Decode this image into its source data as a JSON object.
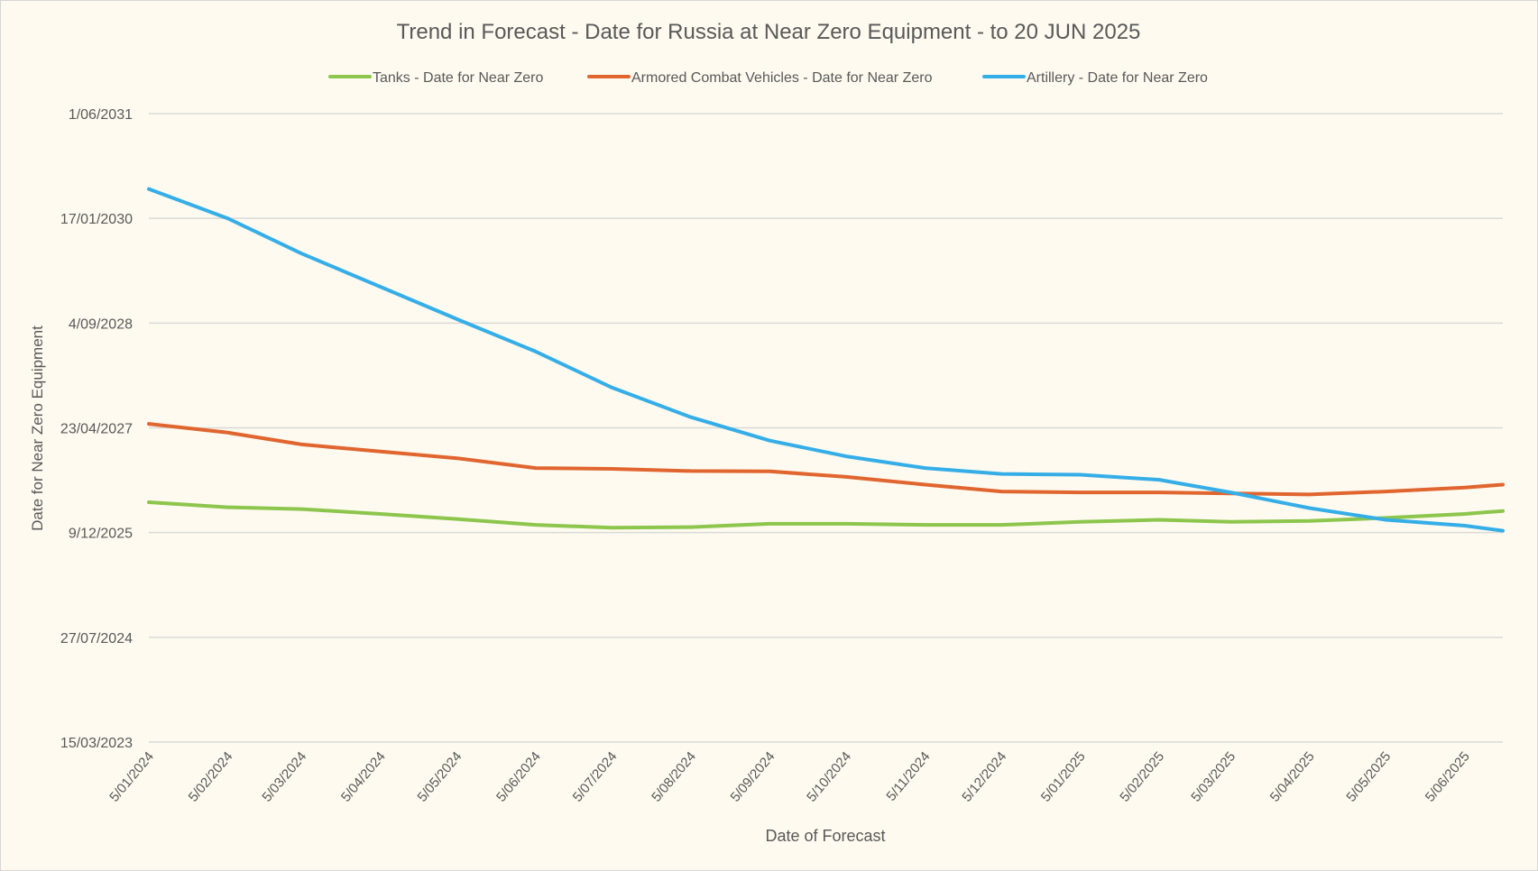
{
  "chart_data": {
    "type": "line",
    "title": "Trend in Forecast - Date for Russia at Near Zero Equipment - to 20 JUN 2025",
    "xlabel": "Date of Forecast",
    "ylabel": "Date for Near Zero Equipment",
    "legend_position": "top",
    "grid": "horizontal",
    "ylim": [
      "2023-03-15",
      "2031-06-01"
    ],
    "xlim": [
      "2024-01-05",
      "2025-06-20"
    ],
    "y_ticks": [
      {
        "value": "2023-03-15",
        "label": "15/03/2023"
      },
      {
        "value": "2024-07-27",
        "label": "27/07/2024"
      },
      {
        "value": "2025-12-09",
        "label": "9/12/2025"
      },
      {
        "value": "2027-04-23",
        "label": "23/04/2027"
      },
      {
        "value": "2028-09-04",
        "label": "4/09/2028"
      },
      {
        "value": "2030-01-17",
        "label": "17/01/2030"
      },
      {
        "value": "2031-06-01",
        "label": "1/06/2031"
      }
    ],
    "x_ticks": [
      {
        "value": "2024-01-05",
        "label": "5/01/2024"
      },
      {
        "value": "2024-02-05",
        "label": "5/02/2024"
      },
      {
        "value": "2024-03-05",
        "label": "5/03/2024"
      },
      {
        "value": "2024-04-05",
        "label": "5/04/2024"
      },
      {
        "value": "2024-05-05",
        "label": "5/05/2024"
      },
      {
        "value": "2024-06-05",
        "label": "5/06/2024"
      },
      {
        "value": "2024-07-05",
        "label": "5/07/2024"
      },
      {
        "value": "2024-08-05",
        "label": "5/08/2024"
      },
      {
        "value": "2024-09-05",
        "label": "5/09/2024"
      },
      {
        "value": "2024-10-05",
        "label": "5/10/2024"
      },
      {
        "value": "2024-11-05",
        "label": "5/11/2024"
      },
      {
        "value": "2024-12-05",
        "label": "5/12/2024"
      },
      {
        "value": "2025-01-05",
        "label": "5/01/2025"
      },
      {
        "value": "2025-02-05",
        "label": "5/02/2025"
      },
      {
        "value": "2025-03-05",
        "label": "5/03/2025"
      },
      {
        "value": "2025-04-05",
        "label": "5/04/2025"
      },
      {
        "value": "2025-05-05",
        "label": "5/05/2025"
      },
      {
        "value": "2025-06-05",
        "label": "5/06/2025"
      }
    ],
    "x": [
      "2024-01-05",
      "2024-02-05",
      "2024-03-05",
      "2024-04-05",
      "2024-05-05",
      "2024-06-05",
      "2024-07-05",
      "2024-08-05",
      "2024-09-05",
      "2024-10-05",
      "2024-11-05",
      "2024-12-05",
      "2025-01-05",
      "2025-02-05",
      "2025-03-05",
      "2025-04-05",
      "2025-05-05",
      "2025-06-05",
      "2025-06-20"
    ],
    "series": [
      {
        "name": "Tanks - Date for Near Zero",
        "color": "#8cc64c",
        "values": [
          "2026-05-03",
          "2026-04-09",
          "2026-03-31",
          "2026-03-08",
          "2026-02-12",
          "2026-01-15",
          "2026-01-01",
          "2026-01-04",
          "2026-01-20",
          "2026-01-20",
          "2026-01-15",
          "2026-01-15",
          "2026-01-29",
          "2026-02-08",
          "2026-01-29",
          "2026-02-03",
          "2026-02-17",
          "2026-03-08",
          "2026-03-22"
        ]
      },
      {
        "name": "Armored Combat Vehicles - Date for Near Zero",
        "color": "#e0652f",
        "values": [
          "2027-05-12",
          "2027-03-31",
          "2027-02-03",
          "2026-12-31",
          "2026-11-29",
          "2026-10-13",
          "2026-10-09",
          "2026-09-29",
          "2026-09-27",
          "2026-09-01",
          "2026-07-26",
          "2026-06-23",
          "2026-06-19",
          "2026-06-19",
          "2026-06-14",
          "2026-06-09",
          "2026-06-23",
          "2026-07-12",
          "2026-07-26"
        ]
      },
      {
        "name": "Artillery - Date for Near Zero",
        "color": "#35aee8",
        "values": [
          "2030-06-06",
          "2030-01-17",
          "2029-08-02",
          "2029-02-24",
          "2028-09-23",
          "2028-04-21",
          "2027-11-01",
          "2027-06-13",
          "2027-02-21",
          "2026-12-08",
          "2026-10-13",
          "2026-09-15",
          "2026-09-11",
          "2026-08-18",
          "2026-06-19",
          "2026-04-05",
          "2026-02-08",
          "2026-01-11",
          "2025-12-18"
        ]
      }
    ]
  }
}
